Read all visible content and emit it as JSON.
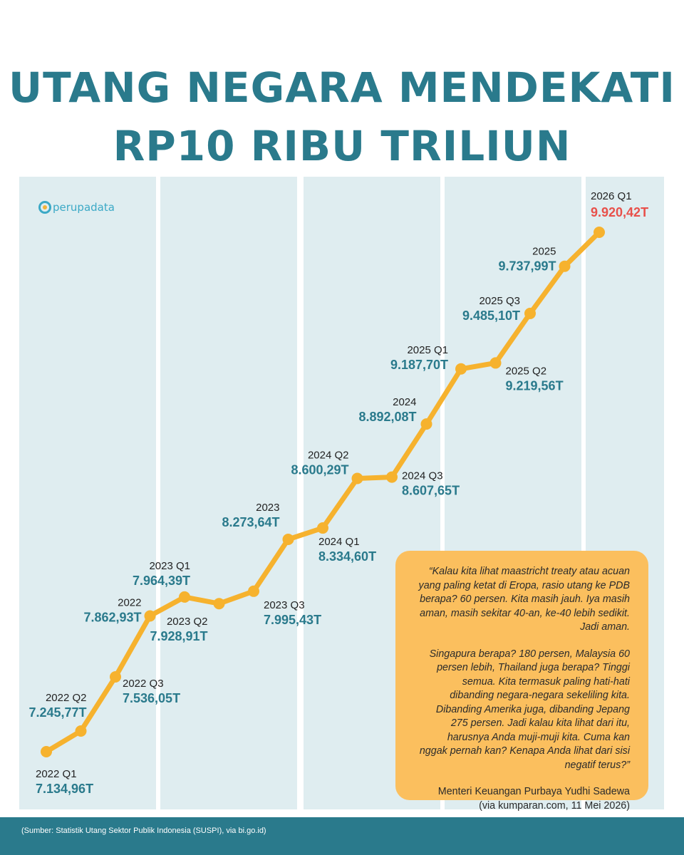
{
  "title_line1": "UTANG NEGARA MENDEKATI",
  "title_line2": "RP10 RIBU TRILIUN",
  "logo_text": "perupadata",
  "colors": {
    "title": "#2a7a8c",
    "line": "#f6b22e",
    "value_text": "#2a7a8c",
    "highlight": "#e8504a",
    "band": "#dfedf0",
    "quote_bg": "#fbbf5e",
    "footer_bg": "#2a7a8c"
  },
  "chart_data": {
    "type": "line",
    "unit": "T",
    "series": [
      {
        "points": [
          {
            "period": "2022 Q1",
            "value": 7134.96,
            "label": "7.134,96T"
          },
          {
            "period": "2022 Q2",
            "value": 7245.77,
            "label": "7.245,77T"
          },
          {
            "period": "2022 Q3",
            "value": 7536.05,
            "label": "7.536,05T"
          },
          {
            "period": "2022",
            "value": 7862.93,
            "label": "7.862,93T"
          },
          {
            "period": "2023 Q1",
            "value": 7964.39,
            "label": "7.964,39T"
          },
          {
            "period": "2023 Q2",
            "value": 7928.91,
            "label": "7.928,91T"
          },
          {
            "period": "2023 Q3",
            "value": 7995.43,
            "label": "7.995,43T"
          },
          {
            "period": "2023",
            "value": 8273.64,
            "label": "8.273,64T"
          },
          {
            "period": "2024 Q1",
            "value": 8334.6,
            "label": "8.334,60T"
          },
          {
            "period": "2024 Q2",
            "value": 8600.29,
            "label": "8.600,29T"
          },
          {
            "period": "2024 Q3",
            "value": 8607.65,
            "label": "8.607,65T"
          },
          {
            "period": "2024",
            "value": 8892.08,
            "label": "8.892,08T"
          },
          {
            "period": "2025 Q1",
            "value": 9187.7,
            "label": "9.187,70T"
          },
          {
            "period": "2025 Q2",
            "value": 9219.56,
            "label": "9.219,56T"
          },
          {
            "period": "2025 Q3",
            "value": 9485.1,
            "label": "9.485,10T"
          },
          {
            "period": "2025",
            "value": 9737.99,
            "label": "9.737,99T"
          },
          {
            "period": "2026 Q1",
            "value": 9920.42,
            "label": "9.920,42T",
            "highlight": true
          }
        ]
      }
    ]
  },
  "quote": {
    "paragraph1": "“Kalau kita lihat maastricht treaty atau acuan yang paling ketat di Eropa, rasio utang ke PDB berapa? 60 persen. Kita masih jauh. Iya masih aman, masih sekitar 40-an, ke-40 lebih sedikit. Jadi aman.",
    "paragraph2": "Singapura berapa? 180 persen, Malaysia 60 persen lebih, Thailand juga berapa? Tinggi semua. Kita termasuk paling hati-hati dibanding negara-negara sekeliling kita. Dibanding Amerika juga, dibanding Jepang 275 persen. Jadi kalau kita lihat dari itu, harusnya Anda muji-muji kita. Cuma kan nggak pernah kan? Kenapa Anda lihat dari sisi negatif terus?”",
    "attribution_line1": "Menteri Keuangan Purbaya Yudhi Sadewa",
    "attribution_line2": "(via kumparan.com, 11 Mei 2026)"
  },
  "footer": {
    "source": "(Sumber: Statistik Utang Sektor Publik Indonesia (SUSPI), via bi.go.id)"
  }
}
